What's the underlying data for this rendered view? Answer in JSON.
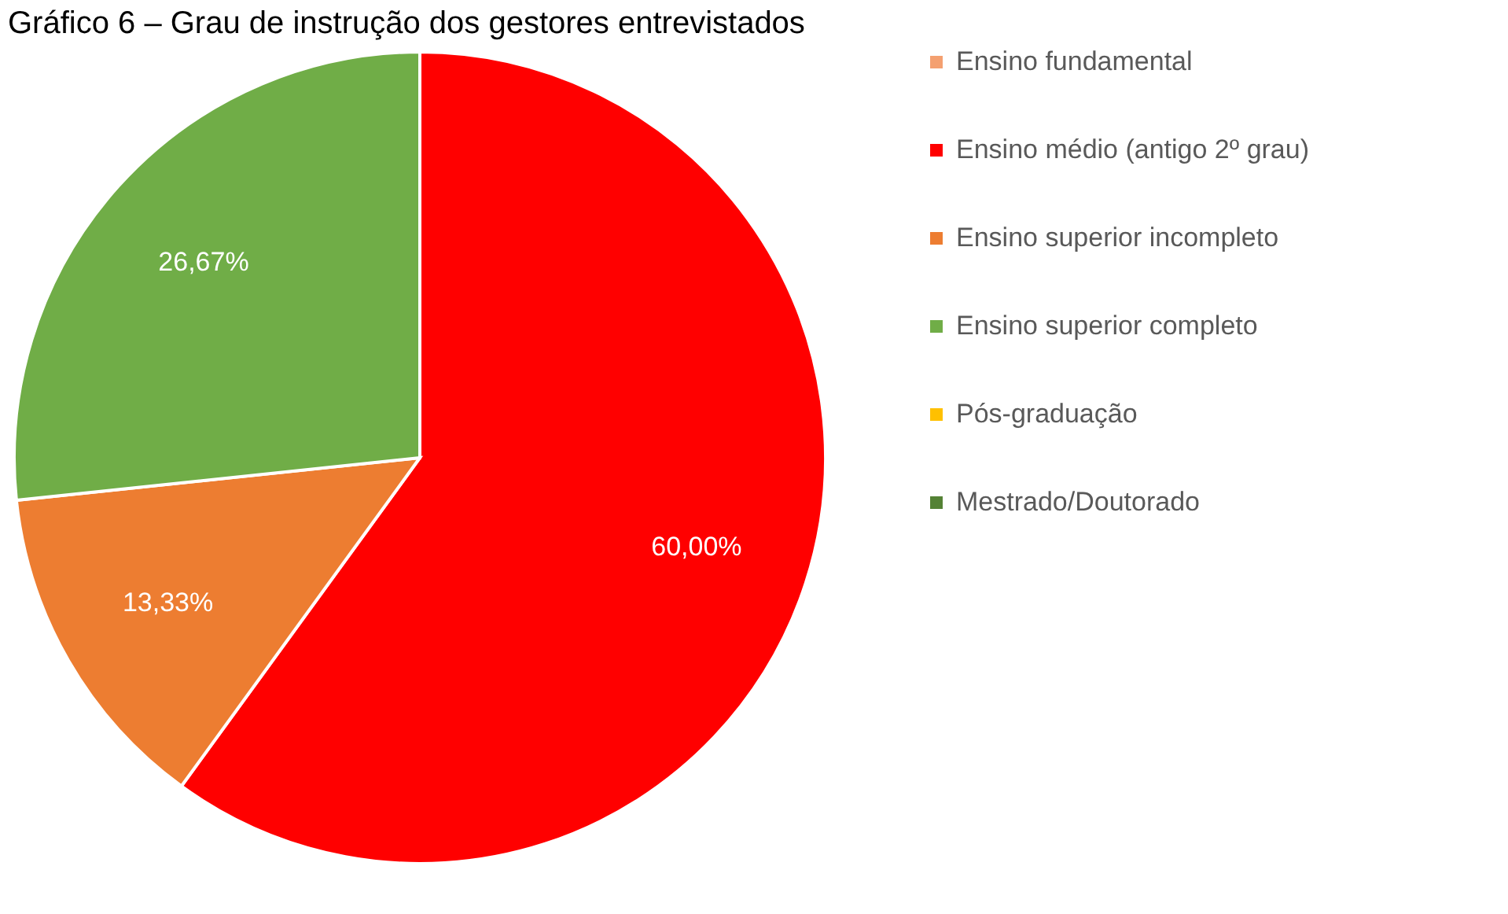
{
  "chart_data": {
    "type": "pie",
    "title": "Gráfico 6 – Grau de instrução dos gestores entrevistados",
    "categories": [
      "Ensino fundamental",
      "Ensino médio (antigo 2º grau)",
      "Ensino superior incompleto",
      "Ensino superior completo",
      "Pós-graduação",
      "Mestrado/Doutorado"
    ],
    "values": [
      0,
      60.0,
      13.33,
      26.67,
      0,
      0
    ],
    "colors": [
      "#f4a070",
      "#ff0000",
      "#ed7d31",
      "#70ad47",
      "#ffc000",
      "#548235"
    ],
    "value_labels": [
      null,
      "60,00%",
      "13,33%",
      "26,67%",
      null,
      null
    ],
    "legend": "right"
  }
}
